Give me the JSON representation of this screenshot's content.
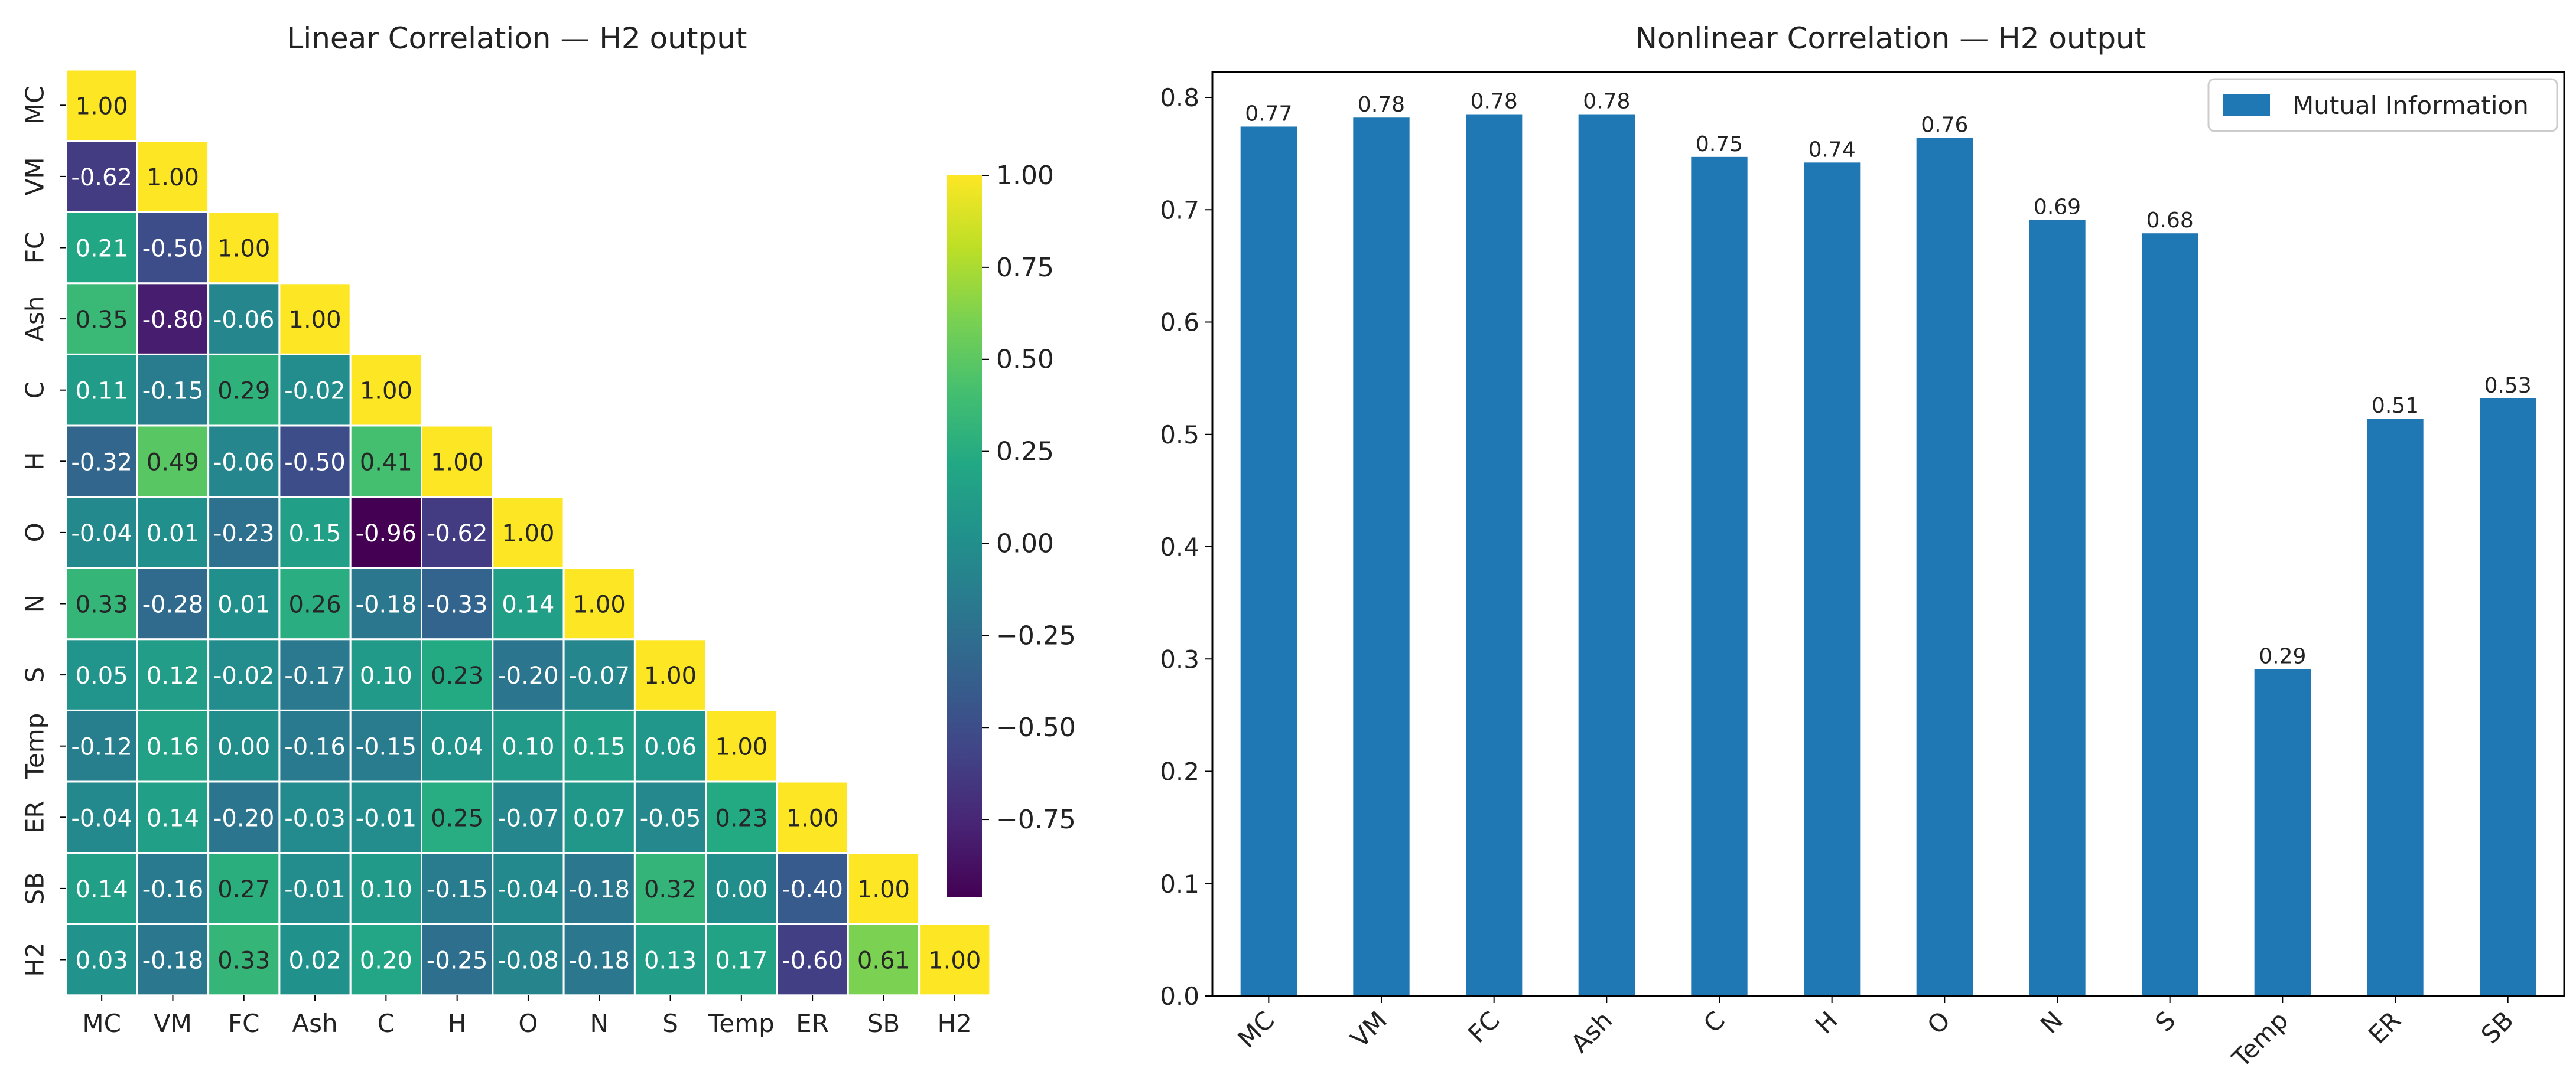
{
  "chart_data": [
    {
      "type": "heatmap",
      "title": "Linear Correlation — H2 output",
      "colormap": "viridis",
      "vmin": -0.96,
      "vmax": 1.0,
      "labels": [
        "MC",
        "VM",
        "FC",
        "Ash",
        "C",
        "H",
        "O",
        "N",
        "S",
        "Temp",
        "ER",
        "SB",
        "H2"
      ],
      "matrix": [
        [
          1.0
        ],
        [
          -0.62,
          1.0
        ],
        [
          0.21,
          -0.5,
          1.0
        ],
        [
          0.35,
          -0.8,
          -0.06,
          1.0
        ],
        [
          0.11,
          -0.15,
          0.29,
          -0.02,
          1.0
        ],
        [
          -0.32,
          0.49,
          -0.06,
          -0.5,
          0.41,
          1.0
        ],
        [
          -0.04,
          0.01,
          -0.23,
          0.15,
          -0.96,
          -0.62,
          1.0
        ],
        [
          0.33,
          -0.28,
          0.01,
          0.26,
          -0.18,
          -0.33,
          0.14,
          1.0
        ],
        [
          0.05,
          0.12,
          -0.02,
          -0.17,
          0.1,
          0.23,
          -0.2,
          -0.07,
          1.0
        ],
        [
          -0.12,
          0.16,
          0.0,
          -0.16,
          -0.15,
          0.04,
          0.1,
          0.15,
          0.06,
          1.0
        ],
        [
          -0.04,
          0.14,
          -0.2,
          -0.03,
          -0.01,
          0.25,
          -0.07,
          0.07,
          -0.05,
          0.23,
          1.0
        ],
        [
          0.14,
          -0.16,
          0.27,
          -0.01,
          0.1,
          -0.15,
          -0.04,
          -0.18,
          0.32,
          0.0,
          -0.4,
          1.0
        ],
        [
          0.03,
          -0.18,
          0.33,
          0.02,
          0.2,
          -0.25,
          -0.08,
          -0.18,
          0.13,
          0.17,
          -0.6,
          0.61,
          1.0
        ]
      ],
      "colorbar_ticks": [
        "1.00",
        "0.75",
        "0.50",
        "0.25",
        "0.00",
        "−0.25",
        "−0.50",
        "−0.75"
      ],
      "colorbar_tick_values": [
        1.0,
        0.75,
        0.5,
        0.25,
        0.0,
        -0.25,
        -0.5,
        -0.75
      ]
    },
    {
      "type": "bar",
      "title": "Nonlinear Correlation — H2 output",
      "categories": [
        "MC",
        "VM",
        "FC",
        "Ash",
        "C",
        "H",
        "O",
        "N",
        "S",
        "Temp",
        "ER",
        "SB"
      ],
      "values": [
        0.774,
        0.782,
        0.785,
        0.785,
        0.747,
        0.742,
        0.764,
        0.691,
        0.679,
        0.291,
        0.514,
        0.532
      ],
      "value_labels": [
        "0.77",
        "0.78",
        "0.78",
        "0.78",
        "0.75",
        "0.74",
        "0.76",
        "0.69",
        "0.68",
        "0.29",
        "0.51",
        "0.53"
      ],
      "ylim": [
        0,
        0.82
      ],
      "yticks": [
        "0.0",
        "0.1",
        "0.2",
        "0.3",
        "0.4",
        "0.5",
        "0.6",
        "0.7",
        "0.8"
      ],
      "ytick_values": [
        0,
        0.1,
        0.2,
        0.3,
        0.4,
        0.5,
        0.6,
        0.7,
        0.8
      ],
      "legend": "Mutual Information",
      "legend_position": "top-right",
      "bar_color": "#1f77b4"
    }
  ]
}
